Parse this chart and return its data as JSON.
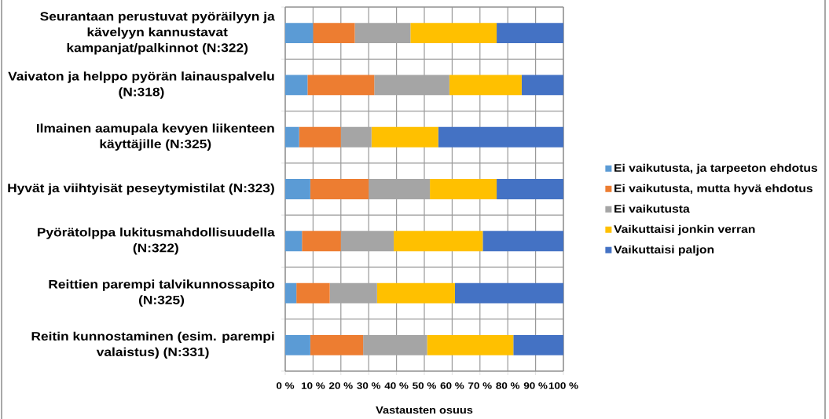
{
  "chart_data": {
    "type": "bar",
    "orientation": "horizontal",
    "stacked": true,
    "categories": [
      "Seurantaan perustuvat pyöräilyyn ja kävelyyn kannustavat kampanjat/palkinnot (N:322)",
      "Vaivaton ja helppo pyörän lainauspalvelu (N:318)",
      "Ilmainen aamupala kevyen liikenteen käyttäjille (N:325)",
      "Hyvät ja viihtyisät peseytymistilat (N:323)",
      "Pyörätolppa lukitusmahdollisuudella (N:322)",
      "Reittien parempi talvikunnossapito (N:325)",
      "Reitin kunnostaminen (esim. parempi valaistus) (N:331)"
    ],
    "series": [
      {
        "name": "Ei vaikutusta, ja tarpeeton ehdotus",
        "color": "#5b9bd5",
        "values": [
          10,
          8,
          5,
          9,
          6,
          4,
          9
        ]
      },
      {
        "name": "Ei vaikutusta, mutta hyvä ehdotus",
        "color": "#ed7d31",
        "values": [
          15,
          24,
          15,
          21,
          14,
          12,
          19
        ]
      },
      {
        "name": "Ei vaikutusta",
        "color": "#a5a5a5",
        "values": [
          20,
          27,
          11,
          22,
          19,
          17,
          23
        ]
      },
      {
        "name": "Vaikuttaisi jonkin verran",
        "color": "#ffc000",
        "values": [
          31,
          26,
          24,
          24,
          32,
          28,
          31
        ]
      },
      {
        "name": "Vaikuttaisi paljon",
        "color": "#4472c4",
        "values": [
          24,
          15,
          45,
          24,
          29,
          39,
          18
        ]
      }
    ],
    "xlabel": "Vastausten osuus",
    "xlim": [
      0,
      100
    ],
    "xticks": [
      {
        "value": 0,
        "label": "0 %"
      },
      {
        "value": 10,
        "label": "10 %"
      },
      {
        "value": 20,
        "label": "20 %"
      },
      {
        "value": 30,
        "label": "30 %"
      },
      {
        "value": 40,
        "label": "40 %"
      },
      {
        "value": 50,
        "label": "50 %"
      },
      {
        "value": 60,
        "label": "60 %"
      },
      {
        "value": 70,
        "label": "70 %"
      },
      {
        "value": 80,
        "label": "80 %"
      },
      {
        "value": 90,
        "label": "90 %"
      },
      {
        "value": 100,
        "label": "100 %"
      }
    ],
    "grid": true,
    "legend": "right"
  }
}
